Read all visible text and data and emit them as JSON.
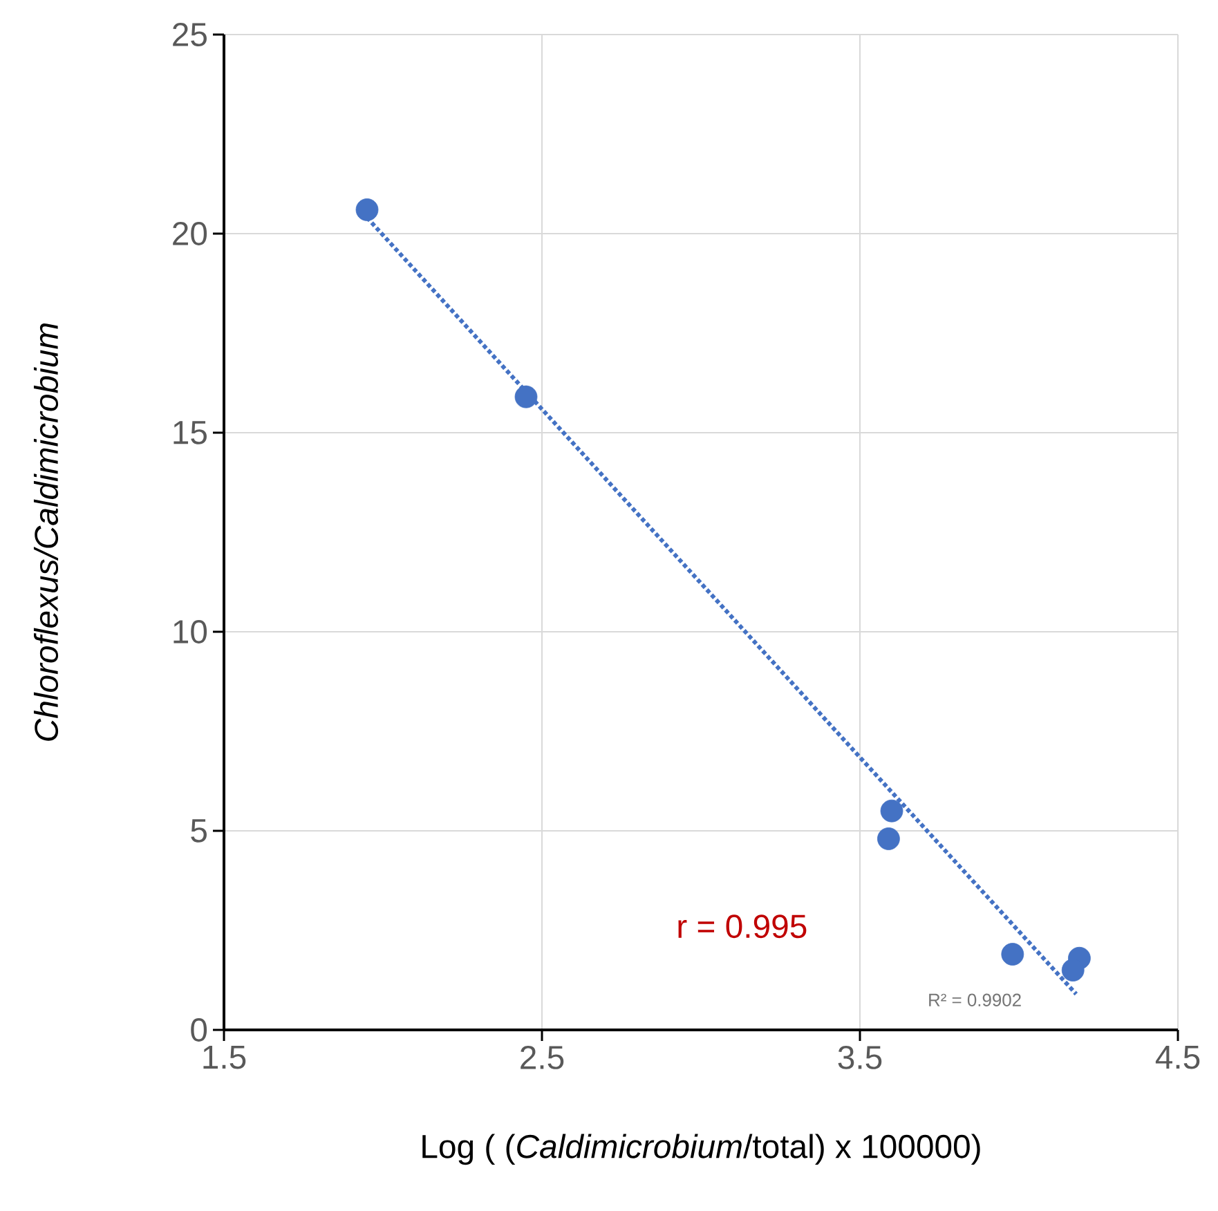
{
  "chart_data": {
    "type": "scatter",
    "xlabel": "Log ( (*Caldimicrobium*/total) x 100000)",
    "ylabel": "Chloroflexus/Caldimicrobium",
    "series": [
      {
        "color": "#4472c4",
        "marker": "circle",
        "x": [
          1.95,
          2.45,
          3.6,
          3.59,
          3.98,
          4.19,
          4.17
        ],
        "values": [
          20.6,
          15.9,
          5.5,
          4.8,
          1.9,
          1.8,
          1.5
        ]
      },
      {
        "type": "line",
        "color": "#4472c4",
        "marker": "none",
        "line_style": "dotted",
        "x": [
          1.95,
          4.18
        ],
        "values": [
          20.4,
          0.9
        ]
      }
    ],
    "annotations": [
      "r = 0.995",
      "R² = 0.9902"
    ],
    "xlim": [
      1.5,
      4.5
    ],
    "xticks": [
      1.5,
      2.5,
      3.5,
      4.5
    ],
    "ylim": [
      0,
      25
    ],
    "yticks": [
      0,
      5,
      10,
      15,
      20,
      25
    ],
    "grid": true
  }
}
